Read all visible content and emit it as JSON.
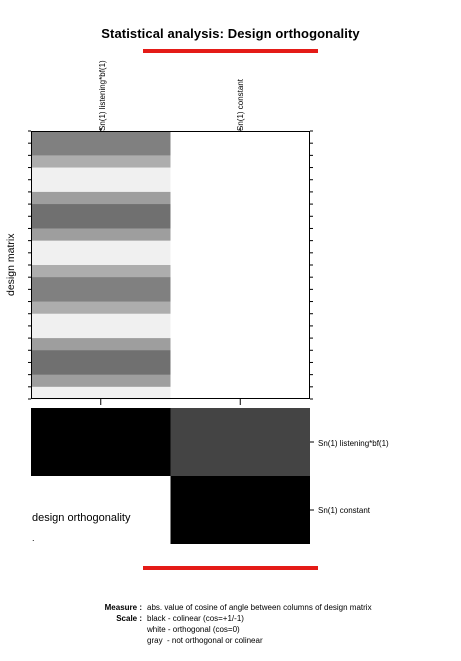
{
  "title": "Statistical analysis: Design orthogonality",
  "colors": {
    "accent_bar": "#e41b17",
    "frame": "#000000"
  },
  "design_matrix": {
    "ylabel": "design matrix",
    "columns": [
      "Sn(1) listening*bf(1)",
      "Sn(1) constant"
    ],
    "n_rows": 22,
    "column_1_row_gray_levels": [
      0.5,
      0.5,
      0.68,
      0.94,
      0.94,
      0.62,
      0.44,
      0.44,
      0.62,
      0.94,
      0.94,
      0.68,
      0.5,
      0.5,
      0.68,
      0.94,
      0.94,
      0.62,
      0.44,
      0.44,
      0.62,
      0.94
    ],
    "column_2_gray_level": 1.0
  },
  "orthogonality": {
    "label": "design orthogonality",
    "rows": [
      "Sn(1) listening*bf(1)",
      "Sn(1) constant"
    ],
    "cells": [
      {
        "row": 0,
        "col": 0,
        "abs_cos": 1.0
      },
      {
        "row": 0,
        "col": 1,
        "abs_cos": 0.72
      },
      {
        "row": 1,
        "col": 1,
        "abs_cos": 1.0
      }
    ],
    "dot": "."
  },
  "legend": {
    "measure_label": "Measure :",
    "measure_text": "abs. value of cosine of angle between columns of design matrix",
    "scale_label": "Scale :",
    "scale_lines": [
      "black - colinear (cos=+1/-1)",
      "white - orthogonal (cos=0)",
      "gray  - not orthogonal or colinear"
    ]
  }
}
